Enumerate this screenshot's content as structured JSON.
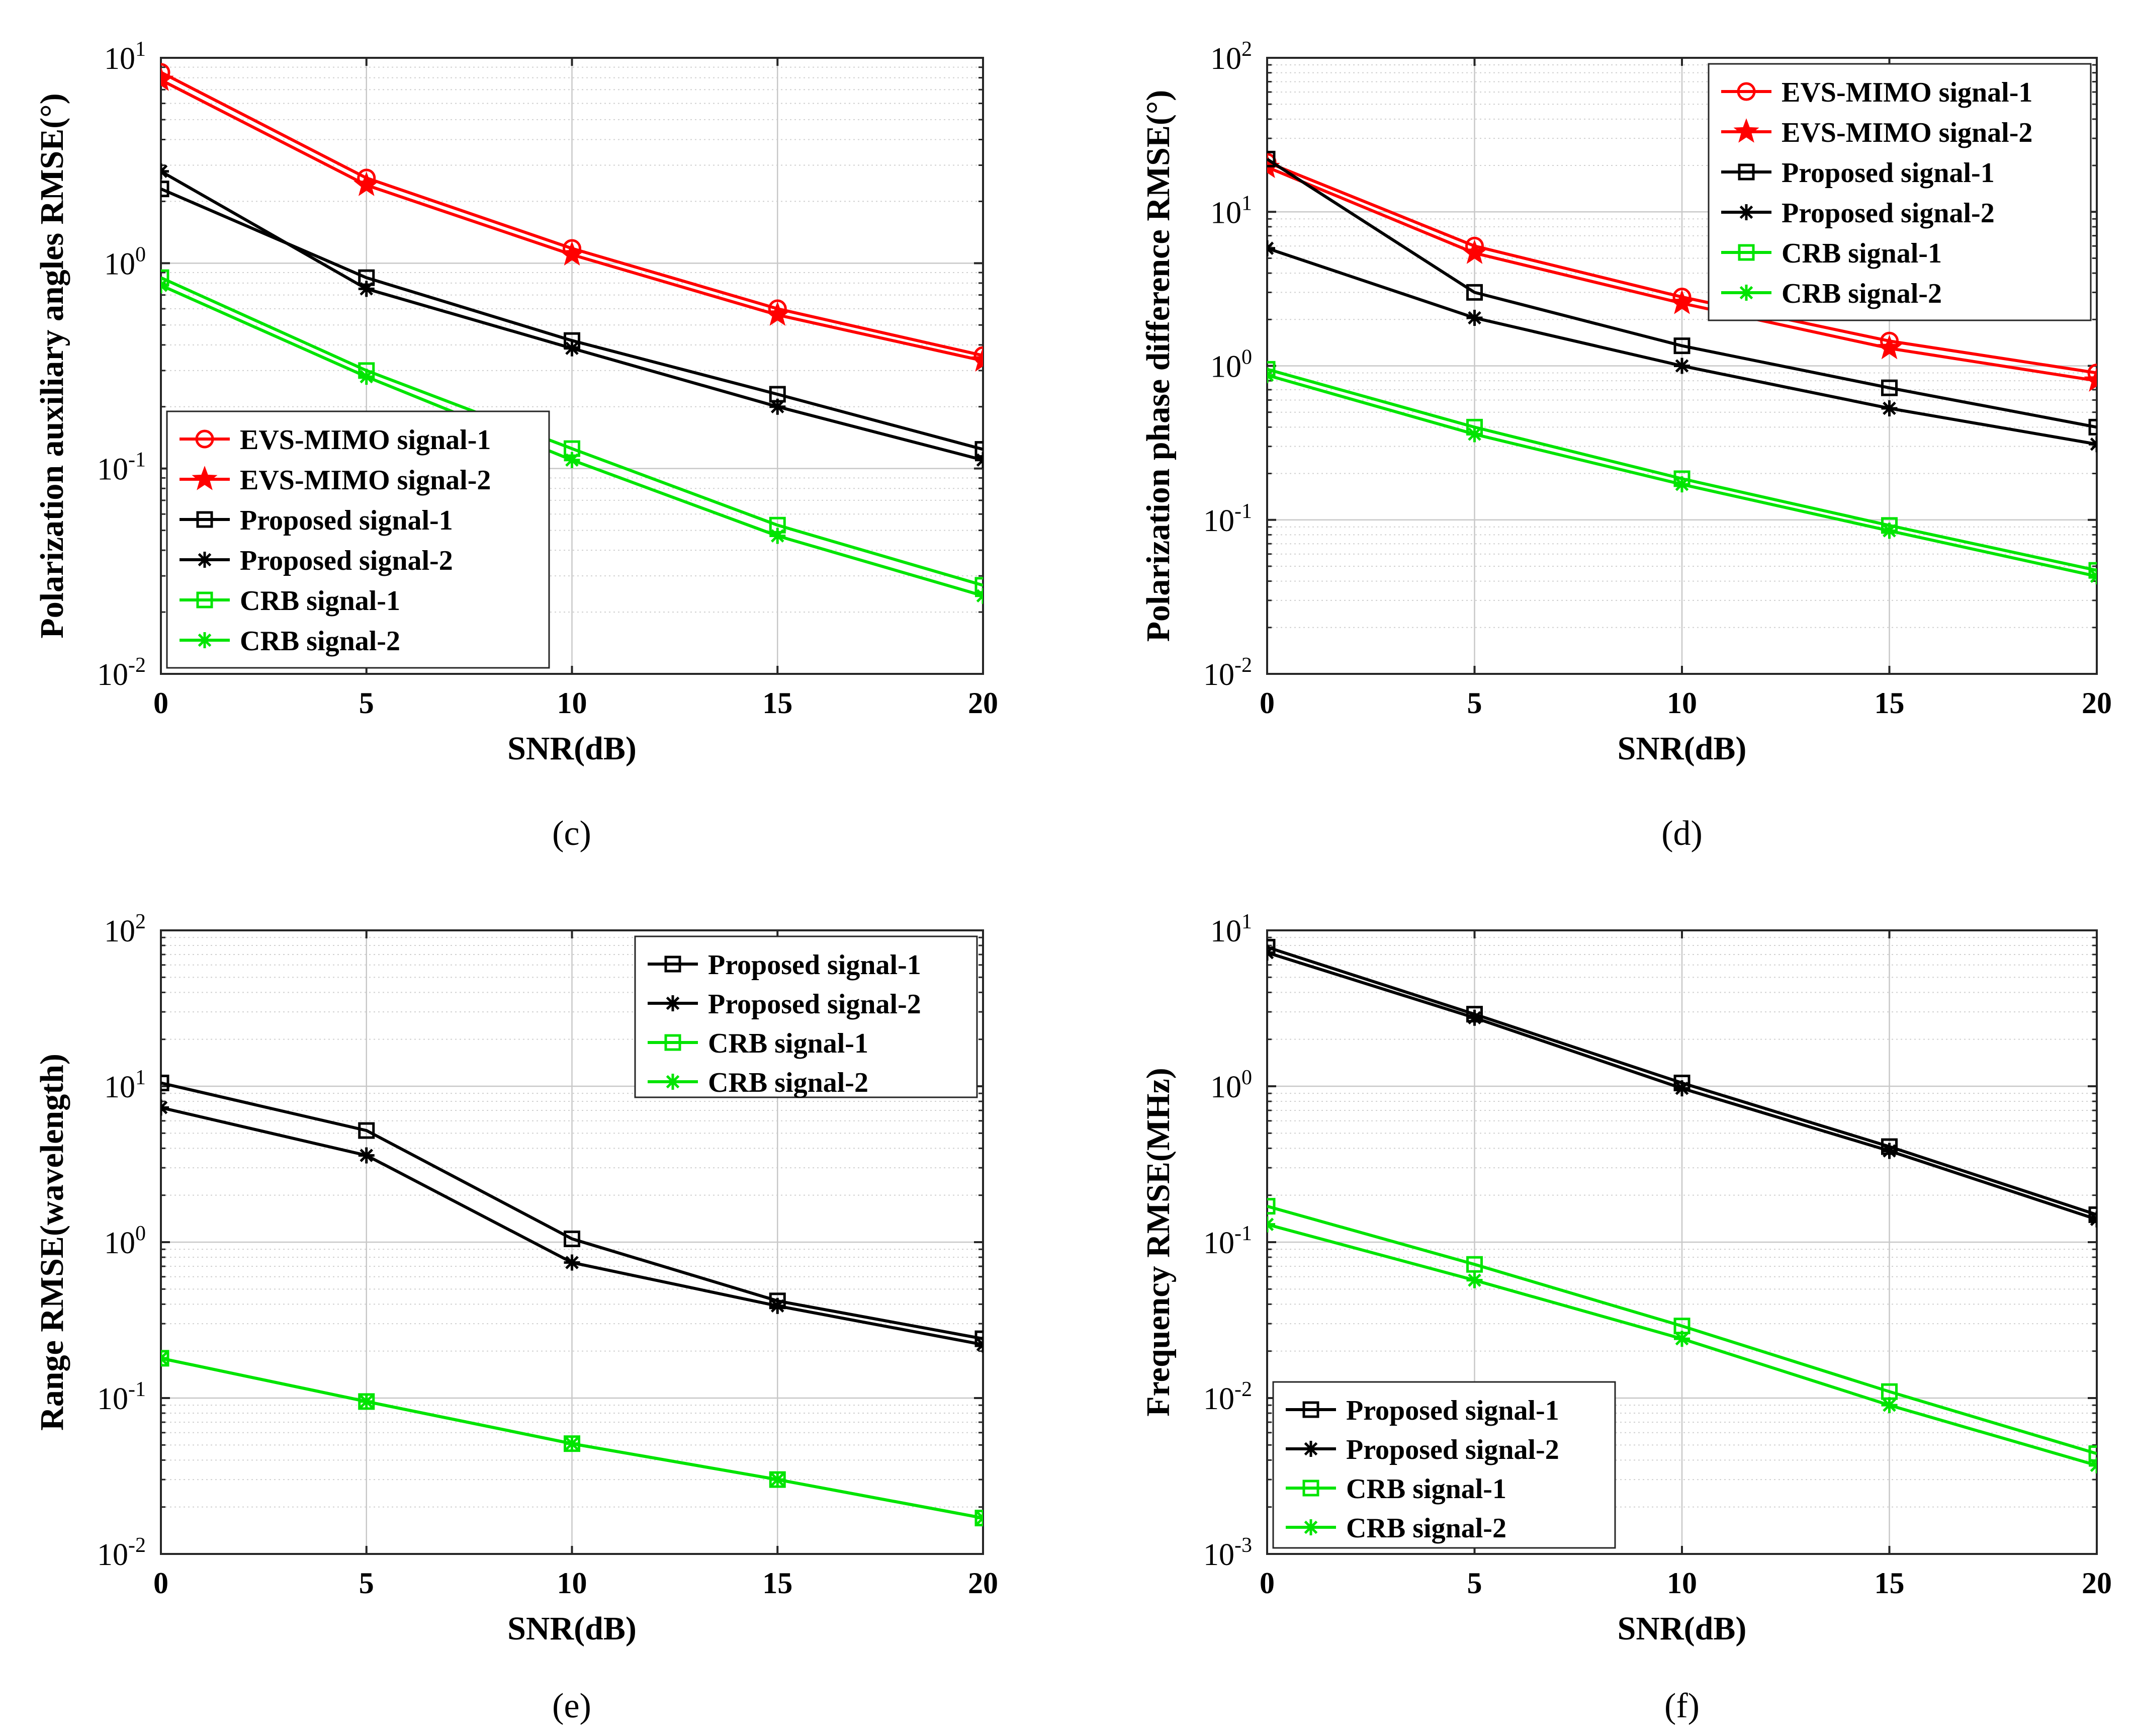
{
  "colors": {
    "evs": "#ff0000",
    "proposed": "#000000",
    "crb": "#00e400",
    "grid": "#c8c8c8"
  },
  "chart_data": [
    {
      "type": "line",
      "panel": "(c)",
      "yscale": "log",
      "xlabel": "SNR(dB)",
      "ylabel": "Polarization auxiliary angles RMSE(°)",
      "x": [
        0,
        5,
        10,
        15,
        20
      ],
      "x_ticks": [
        "0",
        "5",
        "10",
        "15",
        "20"
      ],
      "ylim_exp": [
        -2,
        1
      ],
      "legend_position": "bottom-left",
      "series": [
        {
          "name": "EVS-MIMO signal-1",
          "color": "#ff0000",
          "marker": "circle",
          "values": [
            8.5,
            2.6,
            1.18,
            0.6,
            0.355
          ]
        },
        {
          "name": "EVS-MIMO signal-2",
          "color": "#ff0000",
          "marker": "star",
          "values": [
            7.8,
            2.4,
            1.1,
            0.56,
            0.335
          ]
        },
        {
          "name": "Proposed signal-1",
          "color": "#000000",
          "marker": "square",
          "values": [
            2.3,
            0.85,
            0.42,
            0.23,
            0.124
          ]
        },
        {
          "name": "Proposed signal-2",
          "color": "#000000",
          "marker": "asterisk",
          "values": [
            2.8,
            0.75,
            0.385,
            0.2,
            0.11
          ]
        },
        {
          "name": "CRB signal-1",
          "color": "#00e400",
          "marker": "square",
          "values": [
            0.85,
            0.3,
            0.125,
            0.053,
            0.027
          ]
        },
        {
          "name": "CRB signal-2",
          "color": "#00e400",
          "marker": "asterisk",
          "values": [
            0.78,
            0.28,
            0.11,
            0.047,
            0.024
          ]
        }
      ]
    },
    {
      "type": "line",
      "panel": "(d)",
      "yscale": "log",
      "xlabel": "SNR(dB)",
      "ylabel": "Polarization phase difference RMSE(°)",
      "x": [
        0,
        5,
        10,
        15,
        20
      ],
      "x_ticks": [
        "0",
        "5",
        "10",
        "15",
        "20"
      ],
      "ylim_exp": [
        -2,
        2
      ],
      "legend_position": "top-right",
      "series": [
        {
          "name": "EVS-MIMO signal-1",
          "color": "#ff0000",
          "marker": "circle",
          "values": [
            21,
            6.0,
            2.8,
            1.45,
            0.9
          ]
        },
        {
          "name": "EVS-MIMO signal-2",
          "color": "#ff0000",
          "marker": "star",
          "values": [
            19.5,
            5.4,
            2.55,
            1.3,
            0.8
          ]
        },
        {
          "name": "Proposed signal-1",
          "color": "#000000",
          "marker": "square",
          "values": [
            22,
            3.0,
            1.35,
            0.72,
            0.4
          ]
        },
        {
          "name": "Proposed signal-2",
          "color": "#000000",
          "marker": "asterisk",
          "values": [
            5.8,
            2.05,
            1.0,
            0.53,
            0.31
          ]
        },
        {
          "name": "CRB signal-1",
          "color": "#00e400",
          "marker": "square",
          "values": [
            0.95,
            0.4,
            0.185,
            0.092,
            0.047
          ]
        },
        {
          "name": "CRB signal-2",
          "color": "#00e400",
          "marker": "asterisk",
          "values": [
            0.87,
            0.36,
            0.17,
            0.085,
            0.043
          ]
        }
      ]
    },
    {
      "type": "line",
      "panel": "(e)",
      "yscale": "log",
      "xlabel": "SNR(dB)",
      "ylabel": "Range RMSE(wavelength)",
      "x": [
        0,
        5,
        10,
        15,
        20
      ],
      "x_ticks": [
        "0",
        "5",
        "10",
        "15",
        "20"
      ],
      "ylim_exp": [
        -2,
        2
      ],
      "legend_position": "top-right",
      "series": [
        {
          "name": "Proposed signal-1",
          "color": "#000000",
          "marker": "square",
          "values": [
            10.5,
            5.2,
            1.05,
            0.42,
            0.24
          ]
        },
        {
          "name": "Proposed signal-2",
          "color": "#000000",
          "marker": "asterisk",
          "values": [
            7.3,
            3.6,
            0.74,
            0.39,
            0.22
          ]
        },
        {
          "name": "CRB signal-1",
          "color": "#00e400",
          "marker": "square",
          "values": [
            0.18,
            0.095,
            0.051,
            0.03,
            0.017
          ]
        },
        {
          "name": "CRB signal-2",
          "color": "#00e400",
          "marker": "asterisk",
          "values": [
            0.18,
            0.095,
            0.051,
            0.03,
            0.017
          ]
        }
      ]
    },
    {
      "type": "line",
      "panel": "(f)",
      "yscale": "log",
      "xlabel": "SNR(dB)",
      "ylabel": "Frequency RMSE(MHz)",
      "x": [
        0,
        5,
        10,
        15,
        20
      ],
      "x_ticks": [
        "0",
        "5",
        "10",
        "15",
        "20"
      ],
      "ylim_exp": [
        -3,
        1
      ],
      "legend_position": "bottom-left",
      "series": [
        {
          "name": "Proposed signal-1",
          "color": "#000000",
          "marker": "square",
          "values": [
            7.8,
            2.9,
            1.05,
            0.41,
            0.15
          ]
        },
        {
          "name": "Proposed signal-2",
          "color": "#000000",
          "marker": "asterisk",
          "values": [
            7.2,
            2.75,
            0.97,
            0.385,
            0.14
          ]
        },
        {
          "name": "CRB signal-1",
          "color": "#00e400",
          "marker": "square",
          "values": [
            0.17,
            0.072,
            0.029,
            0.011,
            0.0044
          ]
        },
        {
          "name": "CRB signal-2",
          "color": "#00e400",
          "marker": "asterisk",
          "values": [
            0.13,
            0.057,
            0.024,
            0.009,
            0.0037
          ]
        }
      ]
    }
  ]
}
